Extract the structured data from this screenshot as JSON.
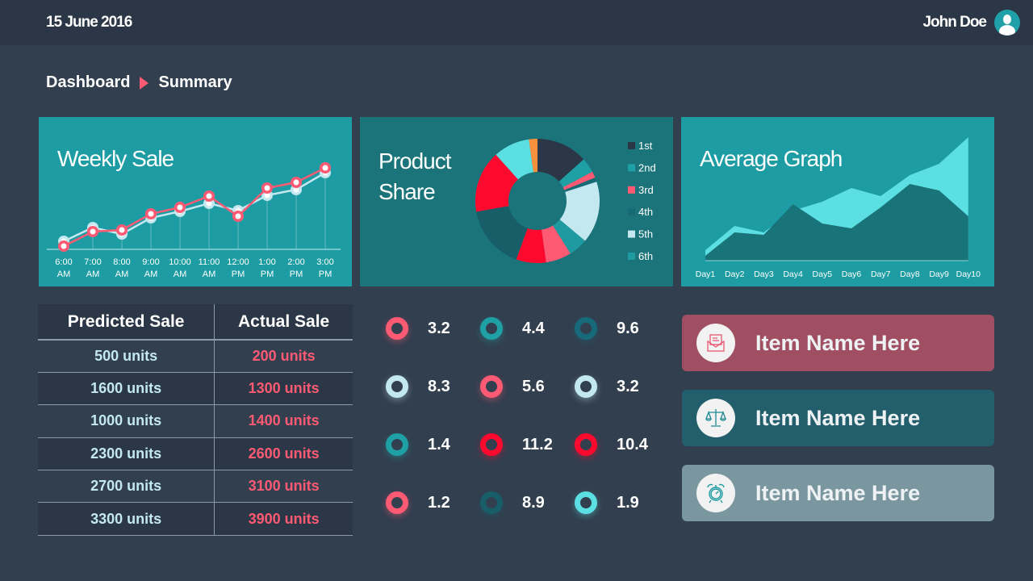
{
  "header": {
    "date": "15 June 2016",
    "user": "John Doe"
  },
  "breadcrumb": {
    "root": "Dashboard",
    "current": "Summary"
  },
  "chart_data": [
    {
      "type": "line",
      "title": "Weekly Sale",
      "categories": [
        "6:00 AM",
        "7:00 AM",
        "8:00 AM",
        "9:00 AM",
        "10:00 AM",
        "11:00 AM",
        "12:00 PM",
        "1:00 PM",
        "2:00 PM",
        "3:00 PM"
      ],
      "ylim": [
        0,
        110
      ],
      "series": [
        {
          "name": "light",
          "color": "#c4e8ef",
          "values": [
            10,
            27,
            19,
            39,
            47,
            57,
            48,
            67,
            74,
            95
          ]
        },
        {
          "name": "pink",
          "color": "#ff5a73",
          "values": [
            4,
            22,
            24,
            44,
            52,
            66,
            41,
            76,
            83,
            101
          ]
        }
      ]
    },
    {
      "type": "pie",
      "title": "Product Share",
      "legend": [
        {
          "label": "1st",
          "color": "#2b3746"
        },
        {
          "label": "2nd",
          "color": "#1fa0a5"
        },
        {
          "label": "3rd",
          "color": "#ff5a73"
        },
        {
          "label": "4th",
          "color": "#176a75"
        },
        {
          "label": "5th",
          "color": "#c4e8ef"
        },
        {
          "label": "6th",
          "color": "#1e9aa0"
        }
      ],
      "slices": [
        {
          "value": 48,
          "color": "#2b3746"
        },
        {
          "value": 14,
          "color": "#1fa0a5"
        },
        {
          "value": 6,
          "color": "#ff5a73"
        },
        {
          "value": 4,
          "color": "#176a75"
        },
        {
          "value": 58,
          "color": "#c4e8ef"
        },
        {
          "value": 18,
          "color": "#1e9aa0"
        },
        {
          "value": 24,
          "color": "#ff5a73"
        },
        {
          "value": 28,
          "color": "#ff0a2e"
        },
        {
          "value": 60,
          "color": "#175e68"
        },
        {
          "value": 58,
          "color": "#ff0a2e"
        },
        {
          "value": 34,
          "color": "#5bdfe2"
        },
        {
          "value": 8,
          "color": "#f7913d"
        }
      ]
    },
    {
      "type": "area",
      "title": "Average Graph",
      "categories": [
        "Day1",
        "Day2",
        "Day3",
        "Day4",
        "Day5",
        "Day6",
        "Day7",
        "Day8",
        "Day9",
        "Day10"
      ],
      "ylim": [
        0,
        160
      ],
      "series": [
        {
          "name": "light",
          "color": "#5bdfe2",
          "values": [
            13,
            43,
            35,
            62,
            73,
            90,
            80,
            106,
            120,
            153
          ]
        },
        {
          "name": "dark",
          "color": "#187478",
          "values": [
            6,
            35,
            32,
            70,
            46,
            40,
            66,
            95,
            87,
            55
          ]
        }
      ]
    }
  ],
  "table": {
    "headers": [
      "Predicted  Sale",
      "Actual  Sale"
    ],
    "rows": [
      [
        "500 units",
        "200 units"
      ],
      [
        "1600 units",
        "1300 units"
      ],
      [
        "1000 units",
        "1400 units"
      ],
      [
        "2300 units",
        "2600 units"
      ],
      [
        "2700 units",
        "3100 units"
      ],
      [
        "3300 units",
        "3900 units"
      ]
    ]
  },
  "metrics": [
    {
      "value": "3.2",
      "color": "#ff5a73"
    },
    {
      "value": "4.4",
      "color": "#1fa0a5"
    },
    {
      "value": "9.6",
      "color": "#176a7a"
    },
    {
      "value": "8.3",
      "color": "#c4e8ef"
    },
    {
      "value": "5.6",
      "color": "#ff5a73"
    },
    {
      "value": "3.2",
      "color": "#c4e8ef"
    },
    {
      "value": "1.4",
      "color": "#1fa0a5"
    },
    {
      "value": "11.2",
      "color": "#ff0a2e"
    },
    {
      "value": "10.4",
      "color": "#ff0a2e"
    },
    {
      "value": "1.2",
      "color": "#ff5a73"
    },
    {
      "value": "8.9",
      "color": "#175e68"
    },
    {
      "value": "1.9",
      "color": "#5bdfe2"
    }
  ],
  "items": [
    {
      "label": "Item Name Here",
      "icon": "envelope-icon",
      "color": "#a04f63"
    },
    {
      "label": "Item Name Here",
      "icon": "scales-icon",
      "color": "#225e6c"
    },
    {
      "label": "Item Name Here",
      "icon": "alarm-clock-icon",
      "color": "#7a97a0"
    }
  ]
}
